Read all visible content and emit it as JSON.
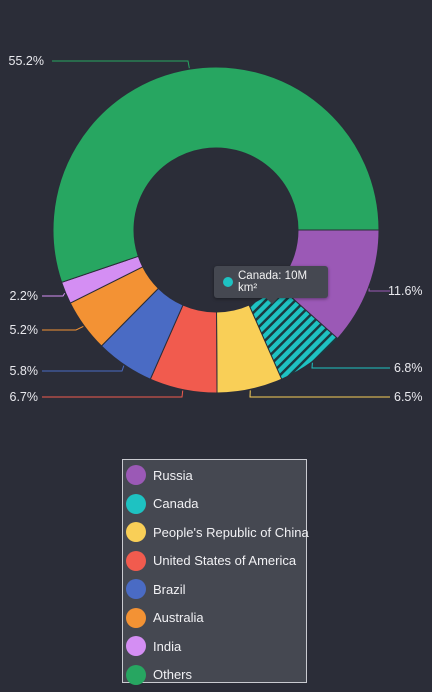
{
  "chart_data": {
    "type": "pie",
    "donut": true,
    "categories": [
      "Russia",
      "Canada",
      "People's Republic of China",
      "United States of America",
      "Brazil",
      "Australia",
      "India",
      "Others"
    ],
    "values": [
      11.6,
      6.8,
      6.5,
      6.7,
      5.8,
      5.2,
      2.2,
      55.2
    ],
    "labels": [
      "11.6%",
      "6.8%",
      "6.5%",
      "6.7%",
      "5.8%",
      "5.2%",
      "2.2%",
      "55.2%"
    ],
    "colors": [
      "#9b59b6",
      "#1ec2c2",
      "#f9cf57",
      "#f15b4e",
      "#4a6bc4",
      "#f39234",
      "#d48ef3",
      "#27a661"
    ],
    "highlighted": "Canada",
    "highlight_pattern": "diagonal-stripes",
    "legend_position": "bottom"
  },
  "tooltip": {
    "text": "Canada: 10M km²",
    "color": "#1ec2c2"
  }
}
